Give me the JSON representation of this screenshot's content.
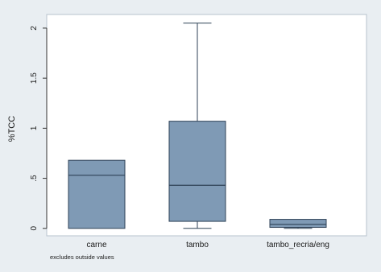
{
  "chart_data": {
    "type": "box",
    "ylabel": "%TCC",
    "xlabel": "",
    "note": "excludes outside values",
    "ylim": [
      -0.05,
      2.12
    ],
    "y_ticks": [
      0,
      0.5,
      1,
      1.5,
      2
    ],
    "y_tick_labels": [
      "0",
      ".5",
      "1",
      "1.5",
      "2"
    ],
    "categories": [
      "carne",
      "tambo",
      "tambo_recria/eng"
    ],
    "boxes": [
      {
        "category": "carne",
        "min": 0.0,
        "q1": 0.0,
        "median": 0.53,
        "q3": 0.68,
        "max": 0.68
      },
      {
        "category": "tambo",
        "min": 0.0,
        "q1": 0.07,
        "median": 0.43,
        "q3": 1.07,
        "max": 2.05
      },
      {
        "category": "tambo_recria/eng",
        "min": 0.0,
        "q1": 0.01,
        "median": 0.04,
        "q3": 0.09,
        "max": 0.09
      }
    ],
    "grid": false,
    "colors": {
      "box_fill": "#7f9ab5",
      "box_stroke": "#2f4257",
      "outer_bg": "#e9eef2",
      "plot_bg": "#ffffff",
      "border": "#b7c3cd"
    }
  }
}
